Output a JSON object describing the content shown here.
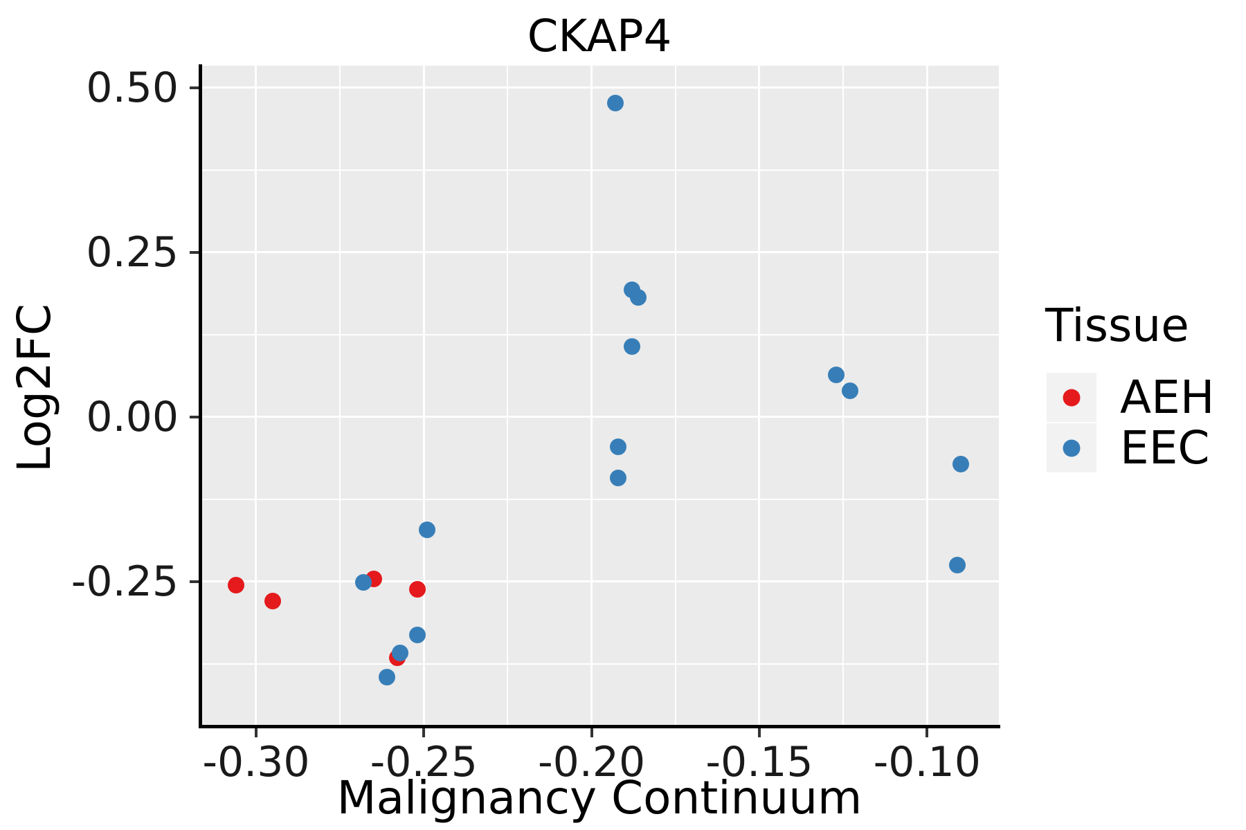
{
  "title": "CKAP4",
  "axes": {
    "x": {
      "label": "Malignancy Continuum",
      "major_ticks": [
        {
          "value": -0.3,
          "label": "-0.30"
        },
        {
          "value": -0.25,
          "label": "-0.25"
        },
        {
          "value": -0.2,
          "label": "-0.20"
        },
        {
          "value": -0.15,
          "label": "-0.15"
        },
        {
          "value": -0.1,
          "label": "-0.10"
        }
      ],
      "minor_ticks": [
        -0.275,
        -0.225,
        -0.175,
        -0.125
      ]
    },
    "y": {
      "label": "Log2FC",
      "major_ticks": [
        {
          "value": 0.5,
          "label": "0.50"
        },
        {
          "value": 0.25,
          "label": "0.25"
        },
        {
          "value": 0.0,
          "label": "0.00"
        },
        {
          "value": -0.25,
          "label": "-0.25"
        }
      ],
      "minor_ticks": [
        0.375,
        0.125,
        -0.125,
        -0.375
      ]
    }
  },
  "legend": {
    "title": "Tissue",
    "items": [
      {
        "label": "AEH",
        "color": "#E41A1C"
      },
      {
        "label": "EEC",
        "color": "#377EB8"
      }
    ]
  },
  "colors": {
    "panel_background": "#EBEBEB",
    "gridline": "#ffffff",
    "legend_key_background": "#F2F2F2",
    "aeh_red": "#E41A1C",
    "eec_blue": "#377EB8"
  },
  "chart_data": {
    "type": "scatter",
    "title": "CKAP4",
    "xlabel": "Malignancy Continuum",
    "ylabel": "Log2FC",
    "xlim": [
      -0.3167,
      -0.0786
    ],
    "ylim": [
      -0.4675,
      0.5336
    ],
    "grid": "major and minor white gridlines on gray panel",
    "legend_position": "right",
    "series": [
      {
        "name": "AEH",
        "color": "#E41A1C",
        "points": [
          [
            -0.306,
            -0.255
          ],
          [
            -0.295,
            -0.279
          ],
          [
            -0.265,
            -0.246
          ],
          [
            -0.252,
            -0.262
          ],
          [
            -0.258,
            -0.366
          ]
        ]
      },
      {
        "name": "EEC",
        "color": "#377EB8",
        "points": [
          [
            -0.193,
            0.477
          ],
          [
            -0.188,
            0.193
          ],
          [
            -0.186,
            0.182
          ],
          [
            -0.188,
            0.107
          ],
          [
            -0.192,
            -0.045
          ],
          [
            -0.192,
            -0.093
          ],
          [
            -0.127,
            0.064
          ],
          [
            -0.123,
            0.04
          ],
          [
            -0.09,
            -0.071
          ],
          [
            -0.091,
            -0.225
          ],
          [
            -0.268,
            -0.251
          ],
          [
            -0.249,
            -0.171
          ],
          [
            -0.252,
            -0.331
          ],
          [
            -0.257,
            -0.358
          ],
          [
            -0.261,
            -0.395
          ]
        ]
      }
    ]
  }
}
